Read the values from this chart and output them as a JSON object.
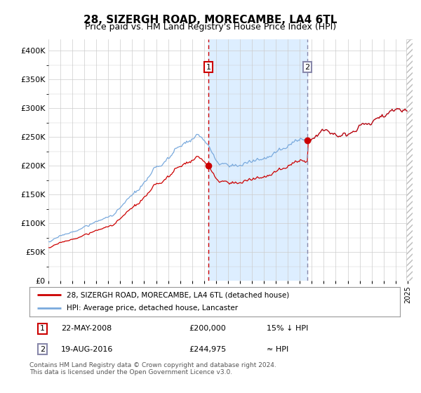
{
  "title": "28, SIZERGH ROAD, MORECAMBE, LA4 6TL",
  "subtitle": "Price paid vs. HM Land Registry's House Price Index (HPI)",
  "legend_line1": "28, SIZERGH ROAD, MORECAMBE, LA4 6TL (detached house)",
  "legend_line2": "HPI: Average price, detached house, Lancaster",
  "footnote1": "Contains HM Land Registry data © Crown copyright and database right 2024.",
  "footnote2": "This data is licensed under the Open Government Licence v3.0.",
  "purchase1_date": "22-MAY-2008",
  "purchase1_price": 200000,
  "purchase1_label": "15% ↓ HPI",
  "purchase1_num": "1",
  "purchase2_date": "19-AUG-2016",
  "purchase2_price": 244975,
  "purchase2_label": "≈ HPI",
  "purchase2_num": "2",
  "hpi_color": "#7aaadd",
  "property_color": "#cc0000",
  "point_color": "#cc0000",
  "vline1_color": "#cc0000",
  "vline2_color": "#8888aa",
  "shade_color": "#ddeeff",
  "bg_color": "#ffffff",
  "grid_color": "#cccccc",
  "ylim": [
    0,
    420000
  ],
  "yticks": [
    0,
    50000,
    100000,
    150000,
    200000,
    250000,
    300000,
    350000,
    400000
  ],
  "ytick_labels": [
    "£0",
    "£50K",
    "£100K",
    "£150K",
    "£200K",
    "£250K",
    "£300K",
    "£350K",
    "£400K"
  ],
  "xstart": 1995,
  "xend": 2025
}
